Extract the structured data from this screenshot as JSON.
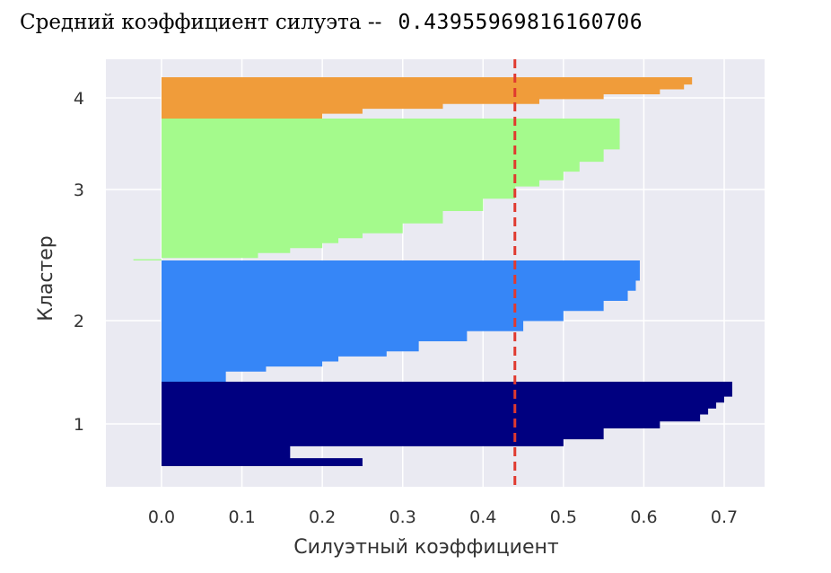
{
  "header": {
    "label": "Средний коэффициент силуэта --",
    "value": "0.43955969816160706"
  },
  "chart_data": {
    "type": "silhouette",
    "xlabel": "Силуэтный коэффициент",
    "ylabel": "Кластер",
    "xlim": [
      -0.07,
      0.75
    ],
    "x_ticks": [
      "0.0",
      "0.1",
      "0.2",
      "0.3",
      "0.4",
      "0.5",
      "0.6",
      "0.7"
    ],
    "grid": true,
    "average_line": {
      "value": 0.4396,
      "color": "#e03a2f",
      "style": "dashed"
    },
    "clusters": [
      {
        "label": "1",
        "color": "#000080",
        "profile": [
          [
            0,
            0.25
          ],
          [
            8,
            0.16
          ],
          [
            16,
            0.16
          ],
          [
            20,
            0.5
          ],
          [
            27,
            0.55
          ],
          [
            34,
            0.55
          ],
          [
            38,
            0.62
          ],
          [
            45,
            0.67
          ],
          [
            52,
            0.68
          ],
          [
            58,
            0.69
          ],
          [
            64,
            0.7
          ],
          [
            70,
            0.71
          ],
          [
            85,
            0.71
          ]
        ]
      },
      {
        "label": "2",
        "color": "#3686f7",
        "profile": [
          [
            0,
            0.08
          ],
          [
            5,
            0.08
          ],
          [
            10,
            0.13
          ],
          [
            15,
            0.2
          ],
          [
            20,
            0.22
          ],
          [
            25,
            0.28
          ],
          [
            30,
            0.32
          ],
          [
            40,
            0.38
          ],
          [
            50,
            0.45
          ],
          [
            60,
            0.5
          ],
          [
            70,
            0.55
          ],
          [
            80,
            0.58
          ],
          [
            90,
            0.59
          ],
          [
            100,
            0.595
          ],
          [
            120,
            0.6
          ]
        ]
      },
      {
        "label": "3",
        "color": "#a4fa8c",
        "profile": [
          [
            0,
            -0.035
          ],
          [
            1,
            0.0
          ],
          [
            2,
            0.12
          ],
          [
            6,
            0.16
          ],
          [
            10,
            0.2
          ],
          [
            14,
            0.22
          ],
          [
            18,
            0.25
          ],
          [
            22,
            0.3
          ],
          [
            30,
            0.35
          ],
          [
            40,
            0.4
          ],
          [
            50,
            0.44
          ],
          [
            60,
            0.47
          ],
          [
            65,
            0.5
          ],
          [
            72,
            0.52
          ],
          [
            80,
            0.55
          ],
          [
            90,
            0.57
          ],
          [
            100,
            0.57
          ],
          [
            115,
            0.57
          ]
        ]
      },
      {
        "label": "4",
        "color": "#f09c3a",
        "profile": [
          [
            0,
            0.2
          ],
          [
            8,
            0.25
          ],
          [
            16,
            0.35
          ],
          [
            24,
            0.47
          ],
          [
            32,
            0.55
          ],
          [
            40,
            0.62
          ],
          [
            48,
            0.65
          ],
          [
            56,
            0.66
          ],
          [
            68,
            0.66
          ]
        ]
      }
    ]
  }
}
